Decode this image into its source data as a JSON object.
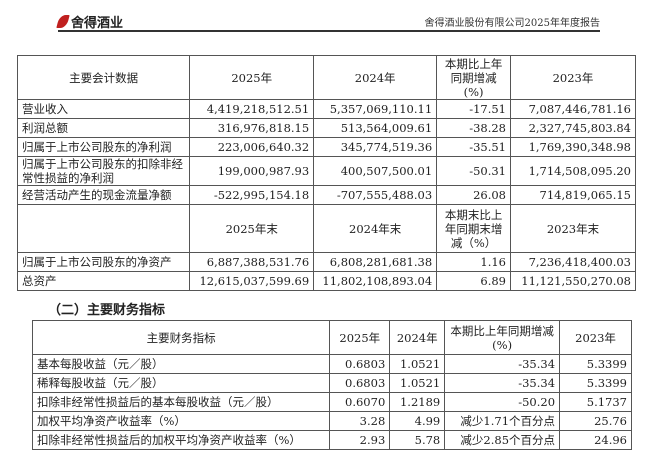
{
  "header": {
    "logo_text": "舍得酒业",
    "report_title": "舍得酒业股份有限公司2025年年度报告"
  },
  "table1": {
    "headers": [
      "主要会计数据",
      "2025年",
      "2024年",
      "本期比上年同期增减(%)",
      "2023年"
    ],
    "rows": [
      [
        "营业收入",
        "4,419,218,512.51",
        "5,357,069,110.11",
        "-17.51",
        "7,087,446,781.16"
      ],
      [
        "利润总额",
        "316,976,818.15",
        "513,564,009.61",
        "-38.28",
        "2,327,745,803.84"
      ],
      [
        "归属于上市公司股东的净利润",
        "223,006,640.32",
        "345,774,519.36",
        "-35.51",
        "1,769,390,348.98"
      ],
      [
        "归属于上市公司股东的扣除非经常性损益的净利润",
        "199,000,987.93",
        "400,507,500.01",
        "-50.31",
        "1,714,508,095.20"
      ],
      [
        "经营活动产生的现金流量净额",
        "-522,995,154.18",
        "-707,555,488.03",
        "26.08",
        "714,819,065.15"
      ]
    ],
    "headers2": [
      "",
      "2025年末",
      "2024年末",
      "本期末比上年同期末增减（%）",
      "2023年末"
    ],
    "rows2": [
      [
        "归属于上市公司股东的净资产",
        "6,887,388,531.76",
        "6,808,281,681.38",
        "1.16",
        "7,236,418,400.03"
      ],
      [
        "总资产",
        "12,615,037,599.69",
        "11,802,108,893.04",
        "6.89",
        "11,121,550,270.08"
      ]
    ]
  },
  "section2_title": "（二）主要财务指标",
  "table2": {
    "headers": [
      "主要财务指标",
      "2025年",
      "2024年",
      "本期比上年同期增减(%)",
      "2023年"
    ],
    "rows": [
      [
        "基本每股收益（元／股）",
        "0.6803",
        "1.0521",
        "-35.34",
        "5.3399"
      ],
      [
        "稀释每股收益（元／股）",
        "0.6803",
        "1.0521",
        "-35.34",
        "5.3399"
      ],
      [
        "扣除非经常性损益后的基本每股收益（元／股）",
        "0.6070",
        "1.2189",
        "-50.20",
        "5.1737"
      ],
      [
        "加权平均净资产收益率（%）",
        "3.28",
        "4.99",
        "减少1.71个百分点",
        "25.76"
      ],
      [
        "扣除非经常性损益后的加权平均净资产收益率（%）",
        "2.93",
        "5.78",
        "减少2.85个百分点",
        "24.96"
      ]
    ]
  }
}
